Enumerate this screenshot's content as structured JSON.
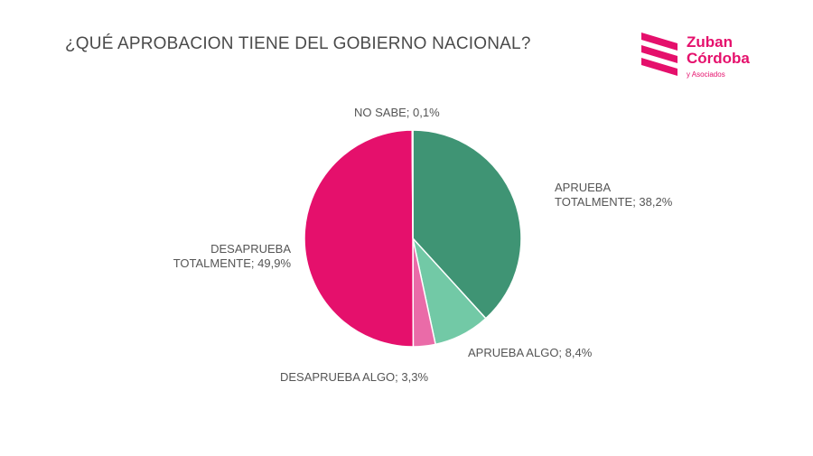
{
  "title": "¿QUÉ APROBACION TIENE DEL GOBIERNO NACIONAL?",
  "logo": {
    "line1": "Zuban",
    "line2": "Córdoba",
    "line3": "y Asociados",
    "color": "#e5106c"
  },
  "chart_data": {
    "type": "pie",
    "title": "¿QUÉ APROBACION TIENE DEL GOBIERNO NACIONAL?",
    "slices": [
      {
        "label": "APRUEBA TOTALMENTE",
        "display": [
          "APRUEBA",
          "TOTALMENTE; 38,2%"
        ],
        "value": 38.2,
        "color": "#3f9474"
      },
      {
        "label": "APRUEBA ALGO",
        "display": [
          "APRUEBA ALGO; 8,4%"
        ],
        "value": 8.4,
        "color": "#72c9a6"
      },
      {
        "label": "DESAPRUEBA ALGO",
        "display": [
          "DESAPRUEBA ALGO; 3,3%"
        ],
        "value": 3.3,
        "color": "#ea6ba8"
      },
      {
        "label": "DESAPRUEBA TOTALMENTE",
        "display": [
          "DESAPRUEBA",
          "TOTALMENTE; 49,9%"
        ],
        "value": 49.9,
        "color": "#e5106c"
      },
      {
        "label": "NO SABE",
        "display": [
          "NO SABE; 0,1%"
        ],
        "value": 0.1,
        "color": "#cccccc"
      }
    ],
    "start_angle_deg": 0,
    "direction": "clockwise"
  }
}
